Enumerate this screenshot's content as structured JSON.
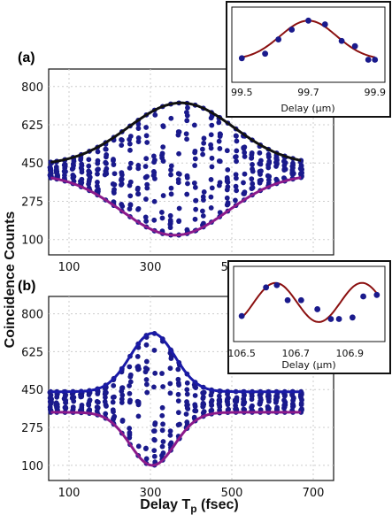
{
  "axis_labels": {
    "ylabel": "Coincidence Counts",
    "xlabel_main": "Delay T",
    "xlabel_sub": "p",
    "xlabel_unit": " (fsec)"
  },
  "colors": {
    "points": "#1a1a8c",
    "upper_a": "#111111",
    "upper_b": "#1a1aa8",
    "lower": "#8b1a8b",
    "inset_curve": "#8b1010",
    "grid": "#cccccc"
  },
  "chart_data": [
    {
      "id": "a",
      "type": "scatter",
      "panel_label": "(a)",
      "xlim": [
        50,
        750
      ],
      "ylim": [
        30,
        880
      ],
      "xticks": [
        100,
        300,
        500,
        700
      ],
      "yticks": [
        100,
        275,
        450,
        625,
        800
      ],
      "grid": true,
      "envelope_upper": {
        "baseline": 440,
        "peak": 725,
        "center": 375,
        "width": 130
      },
      "envelope_lower": {
        "baseline": 400,
        "dip": 120,
        "center": 360,
        "width": 130
      },
      "x_columns": [
        55,
        70,
        90,
        110,
        130,
        150,
        170,
        190,
        210,
        230,
        250,
        270,
        290,
        310,
        330,
        350,
        370,
        390,
        410,
        430,
        450,
        470,
        490,
        510,
        530,
        550,
        570,
        590,
        610,
        630,
        650,
        670
      ],
      "points_per_column": 12
    },
    {
      "id": "b",
      "type": "scatter",
      "panel_label": "(b)",
      "xlim": [
        50,
        750
      ],
      "ylim": [
        30,
        880
      ],
      "xticks": [
        100,
        300,
        500,
        700
      ],
      "yticks": [
        100,
        275,
        450,
        625,
        800
      ],
      "grid": true,
      "envelope_upper": {
        "baseline": 440,
        "peak": 710,
        "center": 305,
        "width": 55
      },
      "envelope_lower": {
        "baseline": 345,
        "dip": 100,
        "center": 305,
        "width": 55
      },
      "x_columns": [
        55,
        70,
        90,
        110,
        130,
        150,
        170,
        190,
        210,
        230,
        250,
        270,
        290,
        310,
        330,
        350,
        370,
        390,
        410,
        430,
        450,
        470,
        490,
        510,
        530,
        550,
        570,
        590,
        610,
        630,
        650,
        670
      ],
      "points_per_column": 12
    },
    {
      "id": "inset-a",
      "type": "scatter",
      "xlabel": "Delay (μm)",
      "xlim": [
        99.47,
        99.93
      ],
      "ylim": [
        0,
        1
      ],
      "xtick_labels": [
        "99.5",
        "99.7",
        "99.9"
      ],
      "xticks": [
        99.5,
        99.7,
        99.9
      ],
      "x": [
        99.5,
        99.57,
        99.61,
        99.65,
        99.7,
        99.75,
        99.8,
        99.84,
        99.88,
        99.9
      ],
      "y": [
        0.32,
        0.38,
        0.57,
        0.7,
        0.82,
        0.77,
        0.55,
        0.48,
        0.3,
        0.3
      ],
      "fit": {
        "baseline": 0.3,
        "amplitude": 0.52,
        "center": 99.7,
        "sigma": 0.085
      }
    },
    {
      "id": "inset-b",
      "type": "scatter",
      "xlabel": "Delay (μm)",
      "xlim": [
        106.47,
        107.03
      ],
      "ylim": [
        0,
        1
      ],
      "xtick_labels": [
        "106.5",
        "106.7",
        "106.9"
      ],
      "xticks": [
        106.5,
        106.7,
        106.9
      ],
      "x": [
        106.5,
        106.59,
        106.63,
        106.67,
        106.72,
        106.78,
        106.83,
        106.86,
        106.91,
        106.95,
        107.0
      ],
      "y": [
        0.34,
        0.72,
        0.75,
        0.55,
        0.55,
        0.43,
        0.3,
        0.3,
        0.32,
        0.6,
        0.62
      ],
      "fit": {
        "offset": 0.52,
        "amplitude": 0.26,
        "period": 0.32,
        "phase_x": 106.625
      }
    }
  ]
}
